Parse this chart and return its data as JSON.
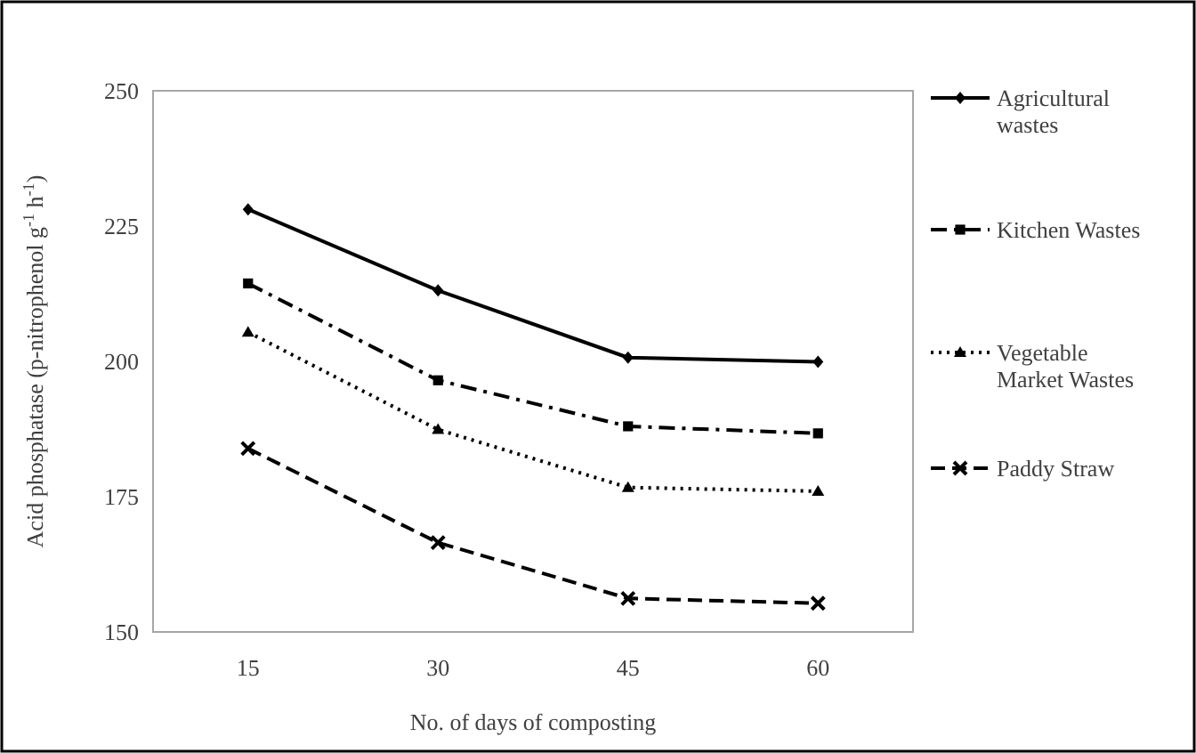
{
  "chart_data": {
    "type": "line",
    "xlabel": "No. of days of composting",
    "ylabel": "Acid phosphatase (p-nitrophenol g$^{-1}$ h$^{-1}$)",
    "categories": [
      "15",
      "30",
      "45",
      "60"
    ],
    "ylim": [
      150,
      250
    ],
    "yticks": [
      150,
      175,
      200,
      225,
      250
    ],
    "grid": false,
    "legend": "right",
    "series": [
      {
        "name": "Agricultural wastes",
        "color": "#000000",
        "marker": "diamond",
        "line_style": "solid",
        "values": [
          228.1,
          213.1,
          200.7,
          199.9
        ]
      },
      {
        "name": "Kitchen Wastes",
        "color": "#000000",
        "marker": "square",
        "line_style": "dashdot",
        "values": [
          214.4,
          196.5,
          188.0,
          186.7
        ]
      },
      {
        "name": "Vegetable Market Wastes",
        "color": "#000000",
        "marker": "triangle",
        "line_style": "dotted",
        "values": [
          205.4,
          187.4,
          176.7,
          176.0
        ]
      },
      {
        "name": "Paddy Straw",
        "color": "#000000",
        "marker": "cross",
        "line_style": "dashed",
        "values": [
          183.9,
          166.5,
          156.2,
          155.3
        ]
      }
    ]
  }
}
